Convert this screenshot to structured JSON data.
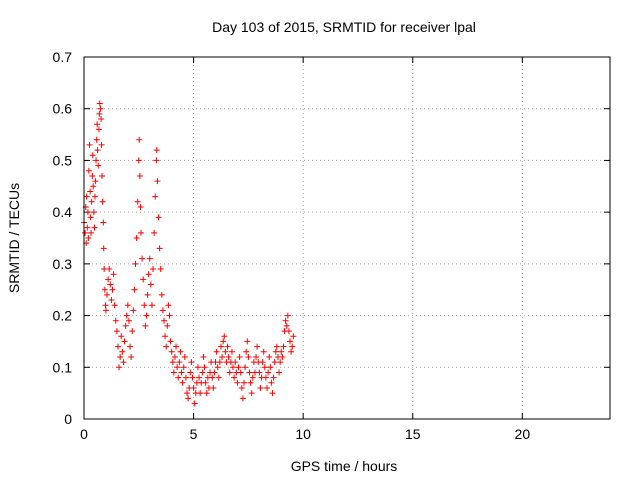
{
  "chart_data": {
    "type": "scatter",
    "title": "Day 103 of 2015, SRMTID for receiver lpal",
    "xlabel": "GPS time / hours",
    "ylabel": "SRMTID / TECUs",
    "xlim": [
      0,
      24
    ],
    "ylim": [
      0,
      0.7
    ],
    "xticks": [
      "0",
      "5",
      "10",
      "15",
      "20"
    ],
    "yticks": [
      "0",
      "0.1",
      "0.2",
      "0.3",
      "0.4",
      "0.5",
      "0.6",
      "0.7"
    ],
    "grid": true,
    "marker": "+",
    "series": [
      {
        "name": "SRMTID",
        "color": "#ff0000",
        "points": [
          [
            0.0,
            0.38
          ],
          [
            0.05,
            0.36
          ],
          [
            0.08,
            0.41
          ],
          [
            0.1,
            0.34
          ],
          [
            0.12,
            0.43
          ],
          [
            0.15,
            0.37
          ],
          [
            0.18,
            0.4
          ],
          [
            0.2,
            0.35
          ],
          [
            0.22,
            0.48
          ],
          [
            0.25,
            0.53
          ],
          [
            0.28,
            0.44
          ],
          [
            0.3,
            0.39
          ],
          [
            0.32,
            0.36
          ],
          [
            0.35,
            0.42
          ],
          [
            0.38,
            0.47
          ],
          [
            0.4,
            0.51
          ],
          [
            0.42,
            0.45
          ],
          [
            0.45,
            0.4
          ],
          [
            0.48,
            0.37
          ],
          [
            0.5,
            0.43
          ],
          [
            0.52,
            0.46
          ],
          [
            0.55,
            0.5
          ],
          [
            0.58,
            0.54
          ],
          [
            0.6,
            0.57
          ],
          [
            0.62,
            0.52
          ],
          [
            0.65,
            0.49
          ],
          [
            0.68,
            0.56
          ],
          [
            0.7,
            0.59
          ],
          [
            0.72,
            0.61
          ],
          [
            0.75,
            0.6
          ],
          [
            0.78,
            0.58
          ],
          [
            0.8,
            0.53
          ],
          [
            0.82,
            0.47
          ],
          [
            0.85,
            0.42
          ],
          [
            0.88,
            0.38
          ],
          [
            0.9,
            0.33
          ],
          [
            0.92,
            0.29
          ],
          [
            0.95,
            0.25
          ],
          [
            0.98,
            0.22
          ],
          [
            1.0,
            0.21
          ],
          [
            1.05,
            0.24
          ],
          [
            1.1,
            0.27
          ],
          [
            1.15,
            0.29
          ],
          [
            1.2,
            0.26
          ],
          [
            1.25,
            0.23
          ],
          [
            1.3,
            0.25
          ],
          [
            1.35,
            0.28
          ],
          [
            1.4,
            0.22
          ],
          [
            1.45,
            0.19
          ],
          [
            1.5,
            0.17
          ],
          [
            1.55,
            0.14
          ],
          [
            1.6,
            0.1
          ],
          [
            1.65,
            0.12
          ],
          [
            1.7,
            0.16
          ],
          [
            1.75,
            0.13
          ],
          [
            1.8,
            0.11
          ],
          [
            1.85,
            0.15
          ],
          [
            1.9,
            0.18
          ],
          [
            1.95,
            0.2
          ],
          [
            2.0,
            0.22
          ],
          [
            2.05,
            0.19
          ],
          [
            2.1,
            0.14
          ],
          [
            2.15,
            0.12
          ],
          [
            2.2,
            0.17
          ],
          [
            2.25,
            0.21
          ],
          [
            2.3,
            0.25
          ],
          [
            2.35,
            0.3
          ],
          [
            2.4,
            0.35
          ],
          [
            2.45,
            0.42
          ],
          [
            2.5,
            0.5
          ],
          [
            2.52,
            0.54
          ],
          [
            2.55,
            0.47
          ],
          [
            2.58,
            0.41
          ],
          [
            2.6,
            0.36
          ],
          [
            2.65,
            0.31
          ],
          [
            2.7,
            0.27
          ],
          [
            2.75,
            0.22
          ],
          [
            2.8,
            0.18
          ],
          [
            2.85,
            0.2
          ],
          [
            2.9,
            0.24
          ],
          [
            2.95,
            0.28
          ],
          [
            3.0,
            0.31
          ],
          [
            3.05,
            0.26
          ],
          [
            3.1,
            0.22
          ],
          [
            3.15,
            0.29
          ],
          [
            3.2,
            0.36
          ],
          [
            3.25,
            0.43
          ],
          [
            3.3,
            0.5
          ],
          [
            3.32,
            0.52
          ],
          [
            3.35,
            0.46
          ],
          [
            3.4,
            0.39
          ],
          [
            3.45,
            0.33
          ],
          [
            3.5,
            0.29
          ],
          [
            3.55,
            0.24
          ],
          [
            3.6,
            0.21
          ],
          [
            3.65,
            0.19
          ],
          [
            3.7,
            0.16
          ],
          [
            3.75,
            0.14
          ],
          [
            3.8,
            0.18
          ],
          [
            3.85,
            0.22
          ],
          [
            3.9,
            0.2
          ],
          [
            3.95,
            0.15
          ],
          [
            4.0,
            0.13
          ],
          [
            4.05,
            0.11
          ],
          [
            4.1,
            0.09
          ],
          [
            4.15,
            0.12
          ],
          [
            4.2,
            0.14
          ],
          [
            4.25,
            0.1
          ],
          [
            4.3,
            0.08
          ],
          [
            4.35,
            0.11
          ],
          [
            4.4,
            0.13
          ],
          [
            4.45,
            0.09
          ],
          [
            4.5,
            0.07
          ],
          [
            4.55,
            0.1
          ],
          [
            4.6,
            0.12
          ],
          [
            4.65,
            0.08
          ],
          [
            4.7,
            0.05
          ],
          [
            4.75,
            0.04
          ],
          [
            4.8,
            0.06
          ],
          [
            4.85,
            0.09
          ],
          [
            4.9,
            0.11
          ],
          [
            4.95,
            0.08
          ],
          [
            5.0,
            0.06
          ],
          [
            5.05,
            0.03
          ],
          [
            5.1,
            0.05
          ],
          [
            5.15,
            0.07
          ],
          [
            5.2,
            0.1
          ],
          [
            5.25,
            0.08
          ],
          [
            5.3,
            0.05
          ],
          [
            5.35,
            0.07
          ],
          [
            5.4,
            0.09
          ],
          [
            5.45,
            0.12
          ],
          [
            5.5,
            0.1
          ],
          [
            5.55,
            0.07
          ],
          [
            5.6,
            0.05
          ],
          [
            5.65,
            0.08
          ],
          [
            5.7,
            0.06
          ],
          [
            5.75,
            0.09
          ],
          [
            5.8,
            0.11
          ],
          [
            5.85,
            0.08
          ],
          [
            5.9,
            0.06
          ],
          [
            5.95,
            0.09
          ],
          [
            6.0,
            0.11
          ],
          [
            6.05,
            0.13
          ],
          [
            6.1,
            0.1
          ],
          [
            6.15,
            0.08
          ],
          [
            6.2,
            0.11
          ],
          [
            6.25,
            0.14
          ],
          [
            6.3,
            0.12
          ],
          [
            6.35,
            0.15
          ],
          [
            6.4,
            0.16
          ],
          [
            6.45,
            0.13
          ],
          [
            6.5,
            0.11
          ],
          [
            6.55,
            0.14
          ],
          [
            6.6,
            0.12
          ],
          [
            6.65,
            0.09
          ],
          [
            6.7,
            0.11
          ],
          [
            6.75,
            0.13
          ],
          [
            6.8,
            0.1
          ],
          [
            6.85,
            0.08
          ],
          [
            6.9,
            0.11
          ],
          [
            6.95,
            0.09
          ],
          [
            7.0,
            0.07
          ],
          [
            7.05,
            0.1
          ],
          [
            7.1,
            0.12
          ],
          [
            7.15,
            0.09
          ],
          [
            7.2,
            0.06
          ],
          [
            7.25,
            0.04
          ],
          [
            7.3,
            0.07
          ],
          [
            7.35,
            0.1
          ],
          [
            7.4,
            0.13
          ],
          [
            7.45,
            0.15
          ],
          [
            7.5,
            0.12
          ],
          [
            7.55,
            0.09
          ],
          [
            7.6,
            0.07
          ],
          [
            7.65,
            0.05
          ],
          [
            7.7,
            0.08
          ],
          [
            7.75,
            0.11
          ],
          [
            7.8,
            0.09
          ],
          [
            7.85,
            0.12
          ],
          [
            7.9,
            0.14
          ],
          [
            7.95,
            0.11
          ],
          [
            8.0,
            0.09
          ],
          [
            8.05,
            0.06
          ],
          [
            8.1,
            0.08
          ],
          [
            8.15,
            0.11
          ],
          [
            8.2,
            0.13
          ],
          [
            8.25,
            0.1
          ],
          [
            8.3,
            0.08
          ],
          [
            8.35,
            0.06
          ],
          [
            8.4,
            0.09
          ],
          [
            8.45,
            0.12
          ],
          [
            8.5,
            0.1
          ],
          [
            8.55,
            0.07
          ],
          [
            8.6,
            0.05
          ],
          [
            8.65,
            0.08
          ],
          [
            8.7,
            0.11
          ],
          [
            8.75,
            0.13
          ],
          [
            8.8,
            0.14
          ],
          [
            8.85,
            0.12
          ],
          [
            8.9,
            0.09
          ],
          [
            8.95,
            0.11
          ],
          [
            9.0,
            0.13
          ],
          [
            9.05,
            0.12
          ],
          [
            9.1,
            0.14
          ],
          [
            9.15,
            0.17
          ],
          [
            9.2,
            0.19
          ],
          [
            9.25,
            0.18
          ],
          [
            9.3,
            0.2
          ],
          [
            9.35,
            0.17
          ],
          [
            9.4,
            0.15
          ],
          [
            9.45,
            0.13
          ],
          [
            9.5,
            0.14
          ],
          [
            9.55,
            0.16
          ]
        ]
      }
    ]
  }
}
